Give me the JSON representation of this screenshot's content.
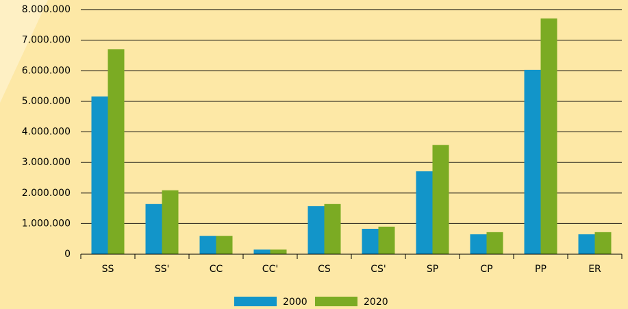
{
  "chart_data": {
    "type": "bar",
    "categories": [
      "SS",
      "SS'",
      "CC",
      "CC'",
      "CS",
      "CS'",
      "SP",
      "CP",
      "PP",
      "ER"
    ],
    "series": [
      {
        "name": "2000",
        "color": "#1295c9",
        "values": [
          5160000,
          1640000,
          600000,
          150000,
          1570000,
          830000,
          2710000,
          650000,
          6030000,
          650000
        ]
      },
      {
        "name": "2020",
        "color": "#7bab23",
        "values": [
          6700000,
          2090000,
          600000,
          150000,
          1640000,
          900000,
          3570000,
          720000,
          7710000,
          720000
        ]
      }
    ],
    "ylim": [
      0,
      8000000
    ],
    "yticks": [
      0,
      {
        "value": 1000000,
        "label": "1.000.000"
      },
      {
        "value": 2000000,
        "label": "2.000.000"
      },
      {
        "value": 3000000,
        "label": "3.000.000"
      },
      {
        "value": 4000000,
        "label": "4.000.000"
      },
      {
        "value": 5000000,
        "label": "5.000.000"
      },
      {
        "value": 6000000,
        "label": "6.000.000"
      },
      {
        "value": 7000000,
        "label": "7.000.000"
      },
      {
        "value": 8000000,
        "label": "8.000.000"
      }
    ],
    "grid": true,
    "legend": "bottom"
  }
}
